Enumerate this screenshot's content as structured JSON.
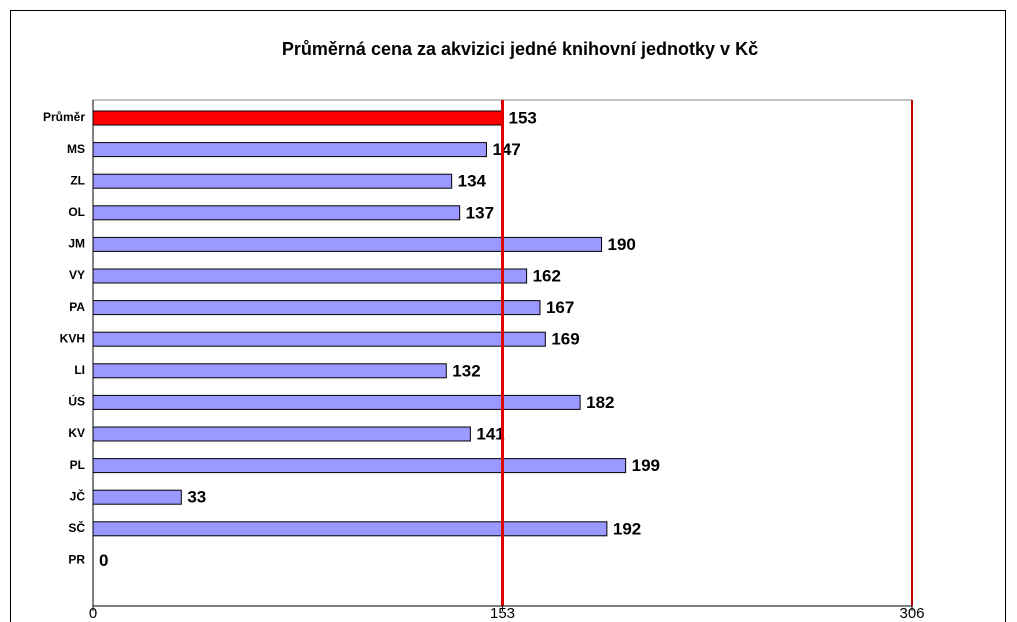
{
  "chart_data": {
    "type": "bar",
    "orientation": "horizontal",
    "title": "Průměrná cena za akvizici jedné knihovní jednotky v Kč",
    "categories": [
      "Průměr",
      "MS",
      "ZL",
      "OL",
      "JM",
      "VY",
      "PA",
      "KVH",
      "LI",
      "ÚS",
      "KV",
      "PL",
      "JČ",
      "SČ",
      "PR"
    ],
    "values": [
      153,
      147,
      134,
      137,
      190,
      162,
      167,
      169,
      132,
      182,
      141,
      199,
      33,
      192,
      0
    ],
    "colors": [
      "#ff0000",
      "#9999ff",
      "#9999ff",
      "#9999ff",
      "#9999ff",
      "#9999ff",
      "#9999ff",
      "#9999ff",
      "#9999ff",
      "#9999ff",
      "#9999ff",
      "#9999ff",
      "#9999ff",
      "#9999ff",
      "#9999ff"
    ],
    "xlim": [
      0,
      306
    ],
    "xticks": [
      0,
      153,
      306
    ],
    "reference_line": {
      "value": 153,
      "color": "#e00000"
    }
  }
}
